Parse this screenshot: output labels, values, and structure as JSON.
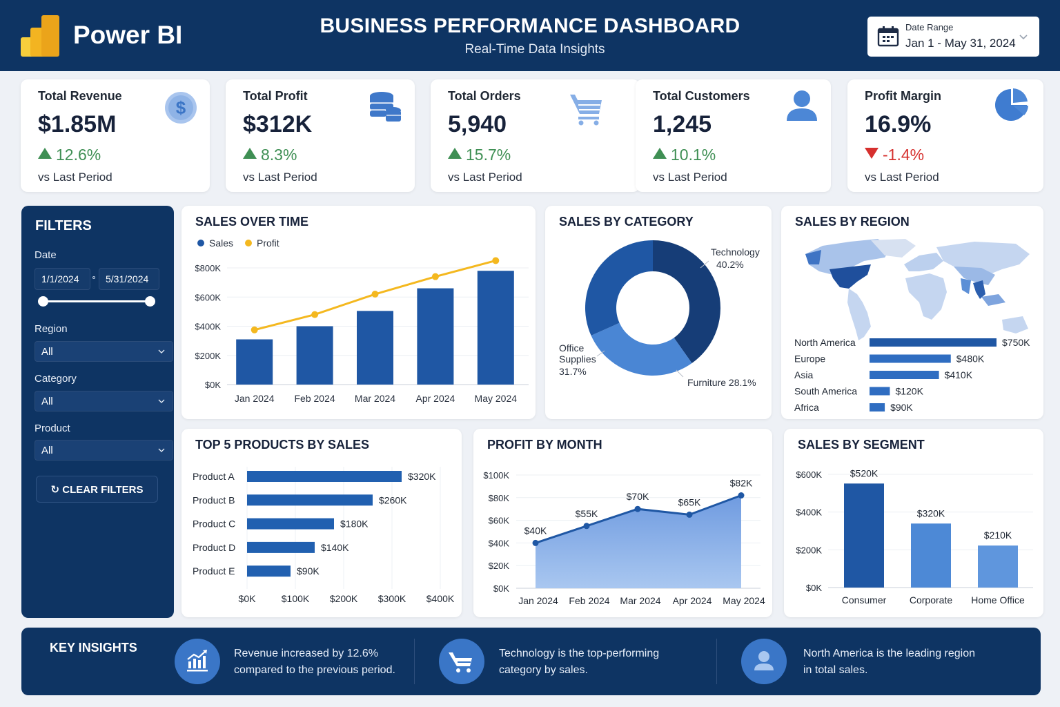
{
  "header": {
    "brand": "Power BI",
    "title": "BUSINESS PERFORMANCE DASHBOARD",
    "subtitle": "Real-Time Data Insights",
    "date_range": {
      "label": "Date Range",
      "value": "Jan 1 - May 31, 2024",
      "icon": "calendar-icon"
    }
  },
  "kpis": [
    {
      "title": "Total Revenue",
      "value": "$1.85M",
      "delta": "12.6%",
      "direction": "up",
      "sub": "vs Last Period",
      "icon": "dollar-coin-icon"
    },
    {
      "title": "Total Profit",
      "value": "$312K",
      "delta": "8.3%",
      "direction": "up",
      "sub": "vs Last Period",
      "icon": "coin-stack-icon"
    },
    {
      "title": "Total Orders",
      "value": "5,940",
      "delta": "15.7%",
      "direction": "up",
      "sub": "vs Last Period",
      "icon": "shopping-cart-icon"
    },
    {
      "title": "Total Customers",
      "value": "1,245",
      "delta": "10.1%",
      "direction": "up",
      "sub": "vs Last Period",
      "icon": "user-icon"
    },
    {
      "title": "Profit Margin",
      "value": "16.9%",
      "delta": "-1.4%",
      "direction": "down",
      "sub": "vs Last Period",
      "icon": "pie-chart-icon"
    }
  ],
  "colors": {
    "navy": "#0e3463",
    "up": "#3f8f54",
    "down": "#d6302e",
    "sales": "#1f57a4",
    "profit": "#f4b81f",
    "light_blue": "#4f8ad6"
  },
  "filters": {
    "title": "FILTERS",
    "date_label": "Date",
    "date_from": "1/1/2024",
    "date_to": "5/31/2024",
    "date_slider_range": [
      0,
      1
    ],
    "region_label": "Region",
    "region_value": "All",
    "category_label": "Category",
    "category_value": "All",
    "product_label": "Product",
    "product_value": "All",
    "clear_label": "CLEAR FILTERS"
  },
  "chart_data": [
    {
      "id": "sales_over_time",
      "type": "bar",
      "title": "SALES OVER TIME",
      "categories": [
        "Jan 2024",
        "Feb 2024",
        "Mar 2024",
        "Apr 2024",
        "May 2024"
      ],
      "series": [
        {
          "name": "Sales",
          "type": "bar",
          "values": [
            310000,
            400000,
            505000,
            660000,
            780000
          ]
        },
        {
          "name": "Profit",
          "type": "line",
          "values": [
            375000,
            480000,
            620000,
            740000,
            850000
          ]
        }
      ],
      "yticks": [
        "$0K",
        "$200K",
        "$400K",
        "$600K",
        "$800K"
      ],
      "ylim": [
        0,
        800000
      ],
      "legend": "top-left",
      "grid": true
    },
    {
      "id": "sales_by_category",
      "type": "pie",
      "title": "SALES BY CATEGORY",
      "donut": true,
      "slices": [
        {
          "label": "Technology",
          "value": 40.2,
          "display": "40.2%"
        },
        {
          "label": "Furniture",
          "value": 28.1,
          "display": "28.1%"
        },
        {
          "label": "Office Supplies",
          "value": 31.7,
          "display": "31.7%"
        }
      ]
    },
    {
      "id": "sales_by_region",
      "type": "bar",
      "orientation": "horizontal",
      "title": "SALES BY REGION",
      "categories": [
        "North America",
        "Europe",
        "Asia",
        "South America",
        "Africa"
      ],
      "values": [
        750000,
        480000,
        410000,
        120000,
        90000
      ],
      "labels": [
        "$750K",
        "$480K",
        "$410K",
        "$120K",
        "$90K"
      ]
    },
    {
      "id": "top_products",
      "type": "bar",
      "orientation": "horizontal",
      "title": "TOP 5 PRODUCTS BY SALES",
      "categories": [
        "Product A",
        "Product B",
        "Product C",
        "Product D",
        "Product E"
      ],
      "values": [
        320000,
        260000,
        180000,
        140000,
        90000
      ],
      "labels": [
        "$320K",
        "$260K",
        "$180K",
        "$140K",
        "$90K"
      ],
      "xticks": [
        "$0K",
        "$100K",
        "$200K",
        "$300K",
        "$400K"
      ],
      "xlim": [
        0,
        400000
      ],
      "grid": true
    },
    {
      "id": "profit_by_month",
      "type": "area",
      "title": "PROFIT BY MONTH",
      "categories": [
        "Jan 2024",
        "Feb 2024",
        "Mar 2024",
        "Apr 2024",
        "May 2024"
      ],
      "values": [
        40000,
        55000,
        70000,
        65000,
        82000
      ],
      "labels": [
        "$40K",
        "$55K",
        "$70K",
        "$65K",
        "$82K"
      ],
      "yticks": [
        "$0K",
        "$20K",
        "$40K",
        "$60K",
        "$80K",
        "$100K"
      ],
      "ylim": [
        0,
        100000
      ],
      "grid": true
    },
    {
      "id": "sales_by_segment",
      "type": "bar",
      "title": "SALES BY SEGMENT",
      "categories": [
        "Consumer",
        "Corporate",
        "Home Office"
      ],
      "values": [
        520000,
        320000,
        210000
      ],
      "labels": [
        "$520K",
        "$320K",
        "$210K"
      ],
      "yticks": [
        "$0K",
        "$200K",
        "$400K",
        "$600K"
      ],
      "ylim": [
        0,
        600000
      ],
      "grid": true
    }
  ],
  "insights": {
    "title": "KEY INSIGHTS",
    "items": [
      {
        "icon": "growth-chart-icon",
        "line1": "Revenue increased by 12.6%",
        "line2": "compared to the previous period."
      },
      {
        "icon": "shopping-cart-icon",
        "line1": "Technology is the top-performing",
        "line2": "category by sales."
      },
      {
        "icon": "user-icon",
        "line1": "North America is the leading region",
        "line2": "in total sales."
      }
    ]
  }
}
